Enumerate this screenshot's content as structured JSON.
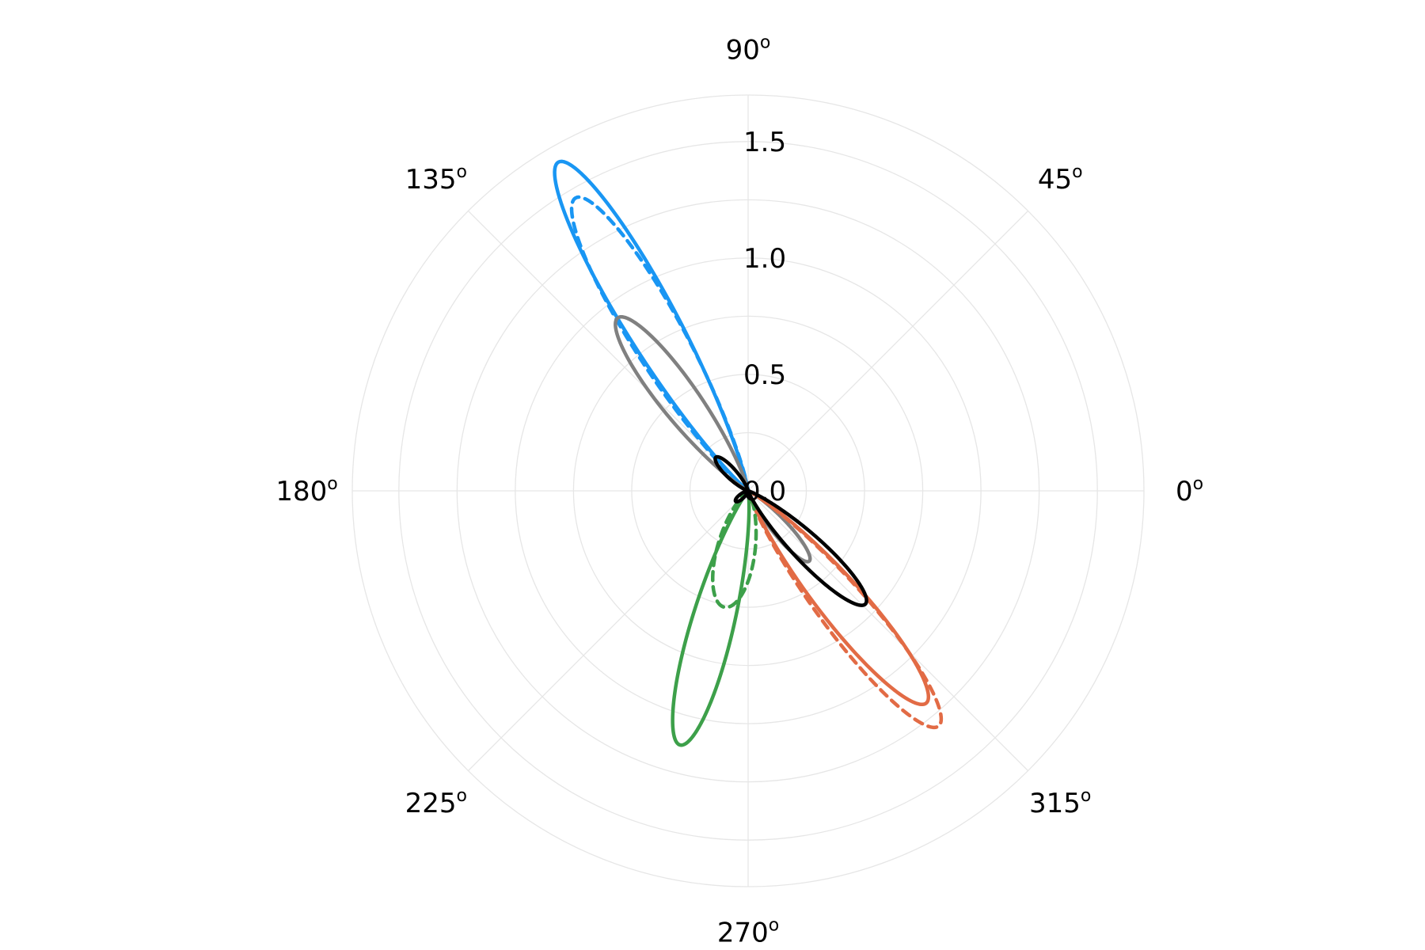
{
  "chart_data": {
    "type": "polar-line",
    "rlim": [
      0,
      1.7
    ],
    "radial_ticks": [
      0.0,
      0.5,
      1.0,
      1.5
    ],
    "radial_tick_labels": [
      "0.0",
      "0.5",
      "1.0",
      "1.5"
    ],
    "angle_ticks_deg": [
      0,
      45,
      90,
      135,
      180,
      225,
      270,
      315
    ],
    "angle_tick_labels": [
      "0",
      "45",
      "90",
      "135",
      "180",
      "225",
      "270",
      "315"
    ],
    "angle_unit_symbol": "o",
    "grid": true,
    "grid_color": "#e6e6e6",
    "series": [
      {
        "color": "#1996f3",
        "style": "solid",
        "width": 4.5,
        "lobes": [
          {
            "dir_deg": 120.0,
            "rmax": 1.63,
            "width_deg": 9.5
          }
        ]
      },
      {
        "color": "#1996f3",
        "style": "dashed",
        "width": 4.5,
        "lobes": [
          {
            "dir_deg": 120.5,
            "rmax": 1.46,
            "width_deg": 10.5
          }
        ]
      },
      {
        "color": "#808080",
        "style": "solid",
        "width": 4.5,
        "lobes": [
          {
            "dir_deg": 127.0,
            "rmax": 0.93,
            "width_deg": 12.0
          },
          {
            "dir_deg": 311.0,
            "rmax": 0.4,
            "width_deg": 12.0
          }
        ]
      },
      {
        "color": "#e26b45",
        "style": "solid",
        "width": 4.5,
        "lobes": [
          {
            "dir_deg": 310.0,
            "rmax": 1.19,
            "width_deg": 11.0
          }
        ]
      },
      {
        "color": "#e26b45",
        "style": "dashed",
        "width": 4.5,
        "lobes": [
          {
            "dir_deg": 309.0,
            "rmax": 1.3,
            "width_deg": 11.0
          }
        ]
      },
      {
        "color": "#3da04a",
        "style": "solid",
        "width": 4.5,
        "lobes": [
          {
            "dir_deg": 255.0,
            "rmax": 1.13,
            "width_deg": 11.0
          }
        ]
      },
      {
        "color": "#3da04a",
        "style": "dashed",
        "width": 4.5,
        "lobes": [
          {
            "dir_deg": 258.5,
            "rmax": 0.51,
            "width_deg": 22.0
          }
        ]
      },
      {
        "color": "#000000",
        "style": "solid",
        "width": 4.5,
        "lobes": [
          {
            "dir_deg": 316.0,
            "rmax": 0.7,
            "width_deg": 12.0
          },
          {
            "dir_deg": 134.0,
            "rmax": 0.2,
            "width_deg": 15.0
          },
          {
            "dir_deg": 220.0,
            "rmax": 0.07,
            "width_deg": 20.0
          }
        ]
      }
    ]
  }
}
